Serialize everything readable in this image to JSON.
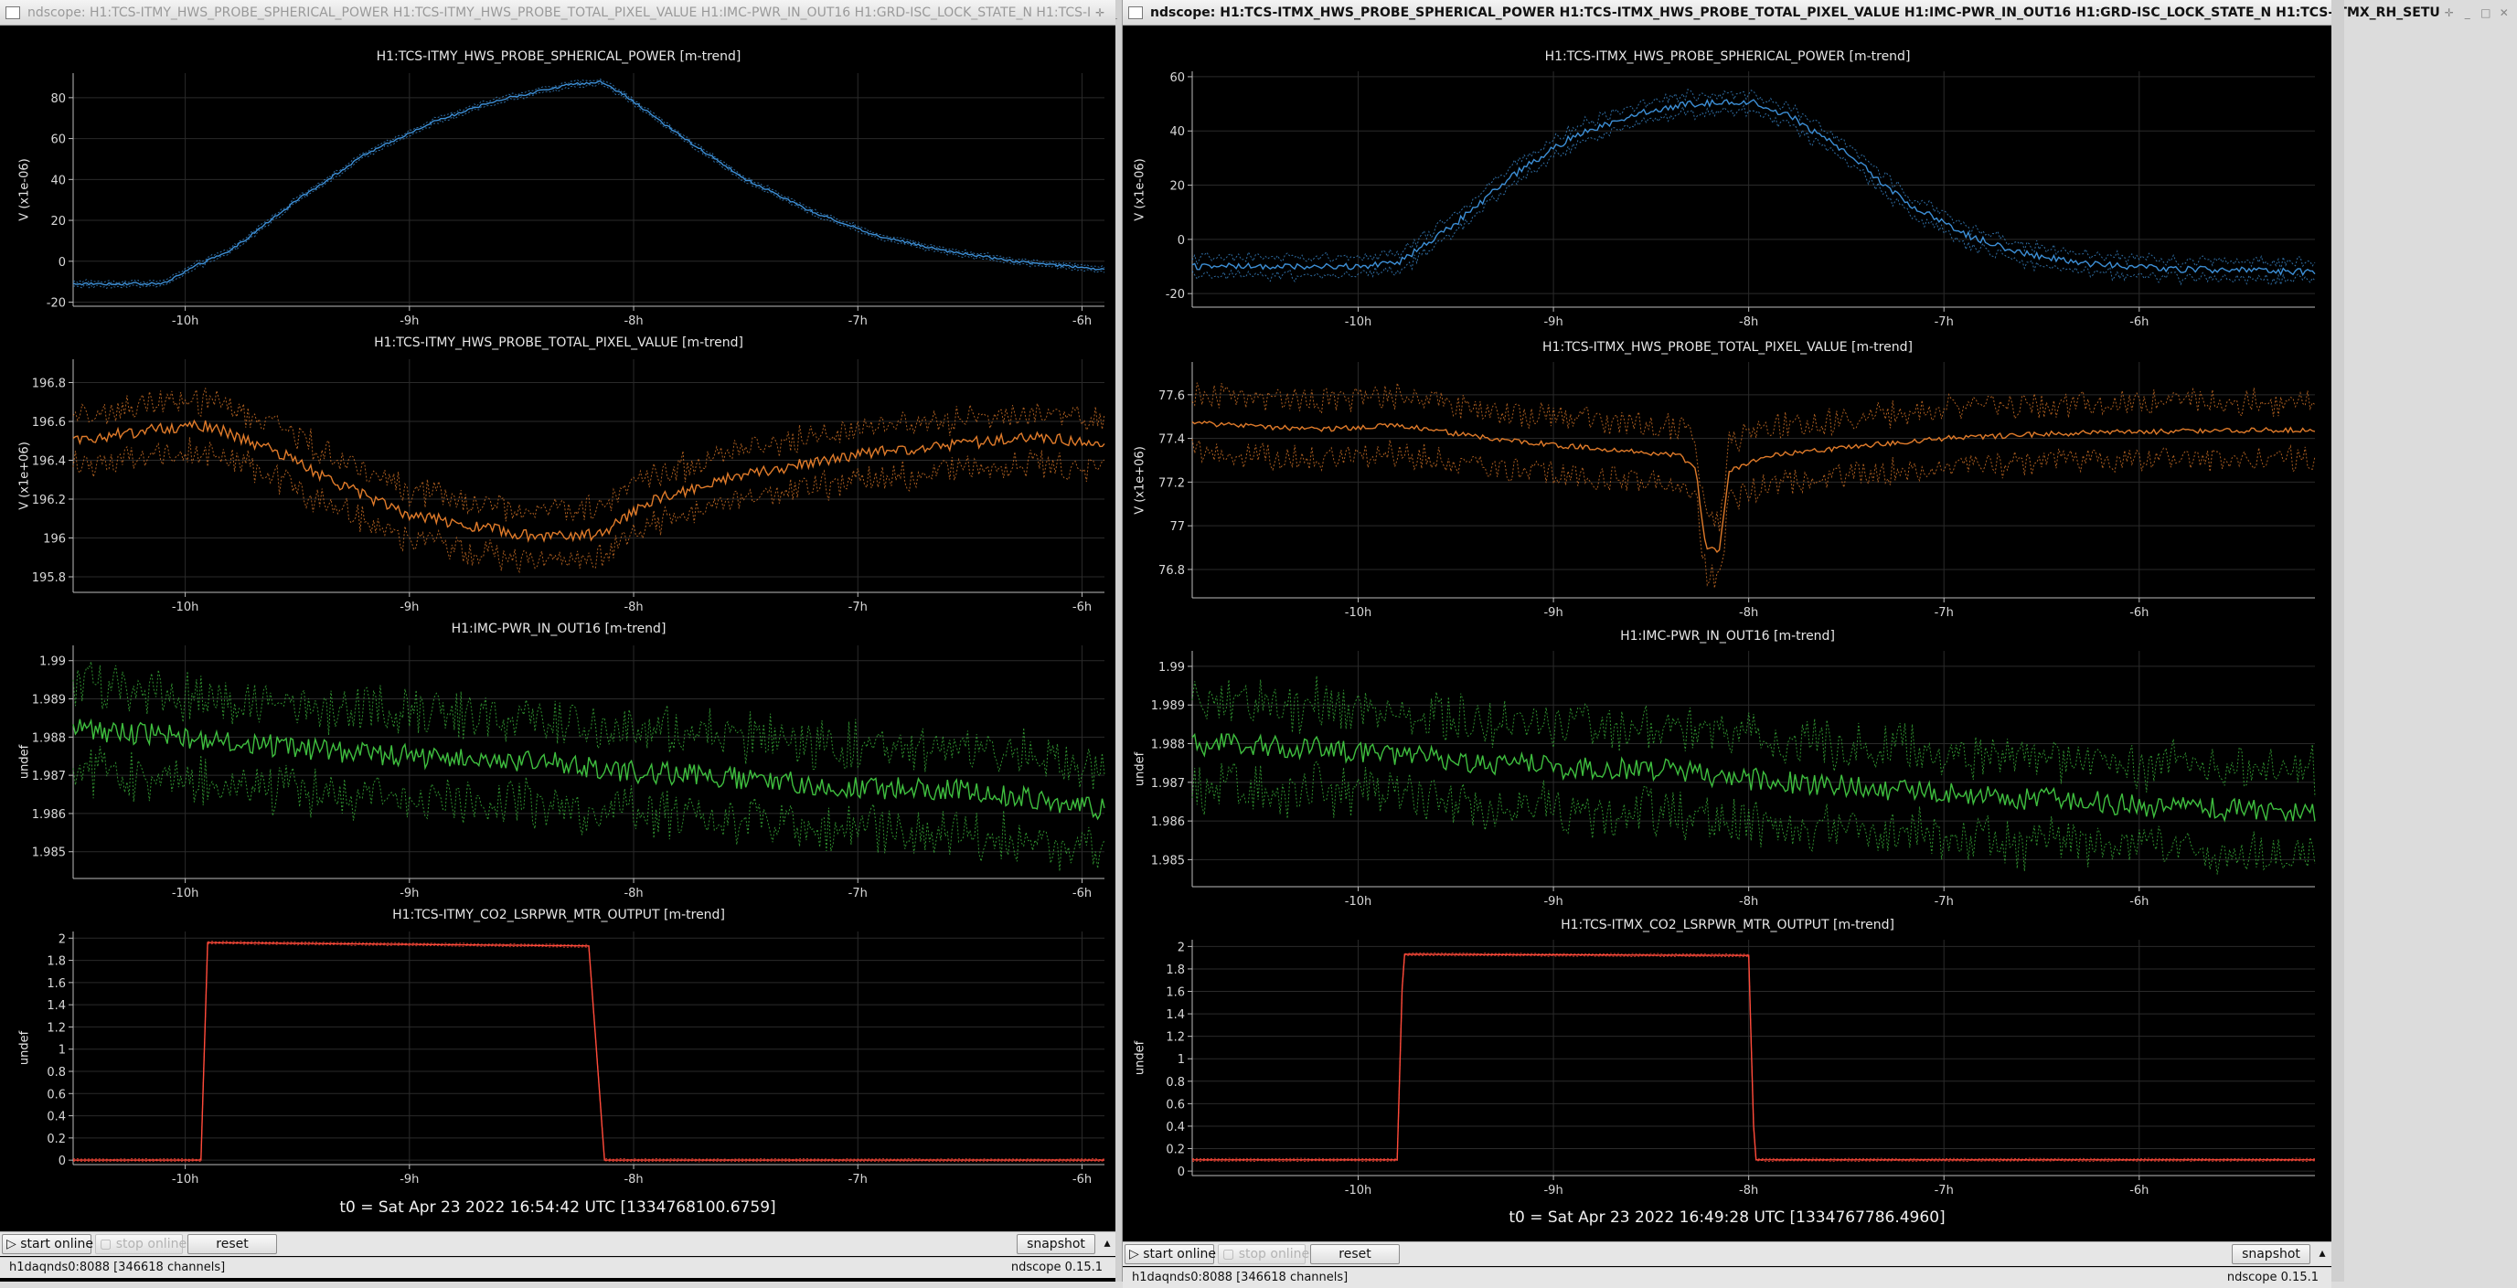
{
  "windows": [
    {
      "id": "left",
      "title": "ndscope: H1:TCS-ITMY_HWS_PROBE_SPHERICAL_POWER H1:TCS-ITMY_HWS_PROBE_TOTAL_PIXEL_VALUE H1:IMC-PWR_IN_OUT16 H1:GRD-ISC_LOCK_STATE_N H1:TCS-I",
      "t0": "t0 = Sat Apr 23 2022 16:54:42 UTC [1334768100.6759]",
      "xticks": [
        "-10h",
        "-9h",
        "-8h",
        "-7h",
        "-6h"
      ],
      "xtick_values": [
        -10,
        -9,
        -8,
        -7,
        -6
      ],
      "xrange": [
        -10.5,
        -5.9
      ],
      "plots": [
        {
          "title": "H1:TCS-ITMY_HWS_PROBE_SPHERICAL_POWER [m-trend]",
          "ylabel": "V (x1e-06)",
          "yticks": [
            "80",
            "60",
            "40",
            "20",
            "0",
            "-20"
          ],
          "ytick_values": [
            80,
            60,
            40,
            20,
            0,
            -20
          ],
          "yrange": [
            -22,
            92
          ],
          "color": "#3d8fd6",
          "noise": 0.6,
          "band": 1.2,
          "anchors": [
            [
              -10.5,
              -11
            ],
            [
              -10.1,
              -11
            ],
            [
              -9.95,
              -2
            ],
            [
              -9.8,
              5
            ],
            [
              -9.5,
              30
            ],
            [
              -9.2,
              52
            ],
            [
              -8.9,
              68
            ],
            [
              -8.6,
              79
            ],
            [
              -8.3,
              86
            ],
            [
              -8.15,
              88
            ],
            [
              -8.05,
              82
            ],
            [
              -7.8,
              62
            ],
            [
              -7.5,
              40
            ],
            [
              -7.2,
              24
            ],
            [
              -6.9,
              12
            ],
            [
              -6.6,
              5
            ],
            [
              -6.3,
              0
            ],
            [
              -5.9,
              -4
            ]
          ]
        },
        {
          "title": "H1:TCS-ITMY_HWS_PROBE_TOTAL_PIXEL_VALUE [m-trend]",
          "ylabel": "V (x1e+06)",
          "yticks": [
            "196.8",
            "196.6",
            "196.4",
            "196.2",
            "196",
            "195.8"
          ],
          "ytick_values": [
            196.8,
            196.6,
            196.4,
            196.2,
            196,
            195.8
          ],
          "yrange": [
            195.72,
            196.92
          ],
          "color": "#e07b2a",
          "noise": 0.03,
          "band": 0.13,
          "anchors": [
            [
              -10.5,
              196.5
            ],
            [
              -10.2,
              196.55
            ],
            [
              -9.9,
              196.58
            ],
            [
              -9.6,
              196.45
            ],
            [
              -9.3,
              196.27
            ],
            [
              -9.0,
              196.12
            ],
            [
              -8.7,
              196.06
            ],
            [
              -8.4,
              196.0
            ],
            [
              -8.15,
              196.02
            ],
            [
              -7.9,
              196.2
            ],
            [
              -7.6,
              196.3
            ],
            [
              -7.3,
              196.37
            ],
            [
              -7.0,
              196.43
            ],
            [
              -6.6,
              196.48
            ],
            [
              -6.2,
              196.52
            ],
            [
              -5.9,
              196.48
            ]
          ]
        },
        {
          "title": "H1:IMC-PWR_IN_OUT16 [m-trend]",
          "ylabel": "undef",
          "yticks": [
            "1.99",
            "1.989",
            "1.988",
            "1.987",
            "1.986",
            "1.985"
          ],
          "ytick_values": [
            1.99,
            1.989,
            1.988,
            1.987,
            1.986,
            1.985
          ],
          "yrange": [
            1.9843,
            1.9904
          ],
          "color": "#3fbf3f",
          "noise": 0.0003,
          "band": 0.0011,
          "anchors": [
            [
              -10.5,
              1.9882
            ],
            [
              -10.0,
              1.988
            ],
            [
              -9.5,
              1.9877
            ],
            [
              -9.0,
              1.9875
            ],
            [
              -8.5,
              1.9874
            ],
            [
              -8.0,
              1.9871
            ],
            [
              -7.5,
              1.9869
            ],
            [
              -7.0,
              1.9867
            ],
            [
              -6.5,
              1.9866
            ],
            [
              -5.9,
              1.9861
            ]
          ]
        },
        {
          "title": "H1:TCS-ITMY_CO2_LSRPWR_MTR_OUTPUT [m-trend]",
          "ylabel": "undef",
          "yticks": [
            "2",
            "1.8",
            "1.6",
            "1.4",
            "1.2",
            "1",
            "0.8",
            "0.6",
            "0.4",
            "0.2",
            "0"
          ],
          "ytick_values": [
            2,
            1.8,
            1.6,
            1.4,
            1.2,
            1,
            0.8,
            0.6,
            0.4,
            0.2,
            0
          ],
          "yrange": [
            -0.04,
            2.06
          ],
          "color": "#ff4a3a",
          "noise": 0.0,
          "band": 0.01,
          "anchors": [
            [
              -10.5,
              0
            ],
            [
              -9.93,
              0
            ],
            [
              -9.9,
              1.96
            ],
            [
              -8.2,
              1.93
            ],
            [
              -8.13,
              0
            ],
            [
              -5.9,
              0
            ]
          ]
        }
      ],
      "toolbar": {
        "start_online": "start online",
        "stop_online": "stop online",
        "reset": "reset",
        "snapshot": "snapshot"
      },
      "status": {
        "server": "h1daqnds0:8088  [346618 channels]",
        "version": "ndscope 0.15.1"
      }
    },
    {
      "id": "right",
      "title": "ndscope: H1:TCS-ITMX_HWS_PROBE_SPHERICAL_POWER H1:TCS-ITMX_HWS_PROBE_TOTAL_PIXEL_VALUE H1:IMC-PWR_IN_OUT16 H1:GRD-ISC_LOCK_STATE_N H1:TCS-ITMX_RH_SETU",
      "t0": "t0 = Sat Apr 23 2022 16:49:28 UTC [1334767786.4960]",
      "xticks": [
        "-10h",
        "-9h",
        "-8h",
        "-7h",
        "-6h"
      ],
      "xtick_values": [
        -10,
        -9,
        -8,
        -7,
        -6
      ],
      "xrange": [
        -10.85,
        -5.1
      ],
      "plots": [
        {
          "title": "H1:TCS-ITMX_HWS_PROBE_SPHERICAL_POWER [m-trend]",
          "ylabel": "V (x1e-06)",
          "yticks": [
            "60",
            "40",
            "20",
            "0",
            "-20"
          ],
          "ytick_values": [
            60,
            40,
            20,
            0,
            -20
          ],
          "yrange": [
            -25,
            62
          ],
          "color": "#3d8fd6",
          "noise": 1.2,
          "band": 3.2,
          "anchors": [
            [
              -10.85,
              -10
            ],
            [
              -10.0,
              -10
            ],
            [
              -9.8,
              -9
            ],
            [
              -9.5,
              6
            ],
            [
              -9.2,
              24
            ],
            [
              -8.9,
              38
            ],
            [
              -8.6,
              46
            ],
            [
              -8.3,
              50
            ],
            [
              -8.0,
              51
            ],
            [
              -7.8,
              46
            ],
            [
              -7.5,
              32
            ],
            [
              -7.2,
              14
            ],
            [
              -6.9,
              2
            ],
            [
              -6.6,
              -5
            ],
            [
              -6.3,
              -9
            ],
            [
              -5.8,
              -11
            ],
            [
              -5.1,
              -12
            ]
          ]
        },
        {
          "title": "H1:TCS-ITMX_HWS_PROBE_TOTAL_PIXEL_VALUE [m-trend]",
          "ylabel": "V (x1e+06)",
          "yticks": [
            "77.6",
            "77.4",
            "77.2",
            "77",
            "76.8"
          ],
          "ytick_values": [
            77.6,
            77.4,
            77.2,
            77,
            76.8
          ],
          "yrange": [
            76.67,
            77.75
          ],
          "color": "#e07b2a",
          "noise": 0.012,
          "band": 0.13,
          "anchors": [
            [
              -10.85,
              77.47
            ],
            [
              -10.2,
              77.44
            ],
            [
              -9.8,
              77.46
            ],
            [
              -9.4,
              77.41
            ],
            [
              -9.0,
              77.37
            ],
            [
              -8.6,
              77.34
            ],
            [
              -8.35,
              77.32
            ],
            [
              -8.27,
              77.25
            ],
            [
              -8.22,
              76.9
            ],
            [
              -8.15,
              76.88
            ],
            [
              -8.1,
              77.25
            ],
            [
              -7.9,
              77.32
            ],
            [
              -7.5,
              77.36
            ],
            [
              -7.0,
              77.4
            ],
            [
              -6.5,
              77.42
            ],
            [
              -6.0,
              77.43
            ],
            [
              -5.1,
              77.44
            ]
          ]
        },
        {
          "title": "H1:IMC-PWR_IN_OUT16 [m-trend]",
          "ylabel": "undef",
          "yticks": [
            "1.99",
            "1.989",
            "1.988",
            "1.987",
            "1.986",
            "1.985"
          ],
          "ytick_values": [
            1.99,
            1.989,
            1.988,
            1.987,
            1.986,
            1.985
          ],
          "yrange": [
            1.9843,
            1.9904
          ],
          "color": "#3fbf3f",
          "noise": 0.0003,
          "band": 0.0011,
          "anchors": [
            [
              -10.85,
              1.988
            ],
            [
              -10.2,
              1.9879
            ],
            [
              -9.6,
              1.9876
            ],
            [
              -9.0,
              1.9874
            ],
            [
              -8.4,
              1.9873
            ],
            [
              -7.8,
              1.987
            ],
            [
              -7.2,
              1.9868
            ],
            [
              -6.6,
              1.9866
            ],
            [
              -6.0,
              1.9864
            ],
            [
              -5.1,
              1.9862
            ]
          ]
        },
        {
          "title": "H1:TCS-ITMX_CO2_LSRPWR_MTR_OUTPUT [m-trend]",
          "ylabel": "undef",
          "yticks": [
            "2",
            "1.8",
            "1.6",
            "1.4",
            "1.2",
            "1",
            "0.8",
            "0.6",
            "0.4",
            "0.2",
            "0"
          ],
          "ytick_values": [
            2,
            1.8,
            1.6,
            1.4,
            1.2,
            1,
            0.8,
            0.6,
            0.4,
            0.2,
            0
          ],
          "yrange": [
            -0.04,
            2.06
          ],
          "color": "#ff4a3a",
          "noise": 0.0,
          "band": 0.01,
          "anchors": [
            [
              -10.85,
              0.1
            ],
            [
              -9.8,
              0.1
            ],
            [
              -9.77,
              1.93
            ],
            [
              -8.0,
              1.92
            ],
            [
              -7.97,
              0.1
            ],
            [
              -5.1,
              0.1
            ]
          ]
        }
      ],
      "toolbar": {
        "start_online": "start online",
        "stop_online": "stop online",
        "reset": "reset",
        "snapshot": "snapshot"
      },
      "status": {
        "server": "h1daqnds0:8088  [346618 channels]",
        "version": "ndscope 0.15.1"
      }
    }
  ]
}
